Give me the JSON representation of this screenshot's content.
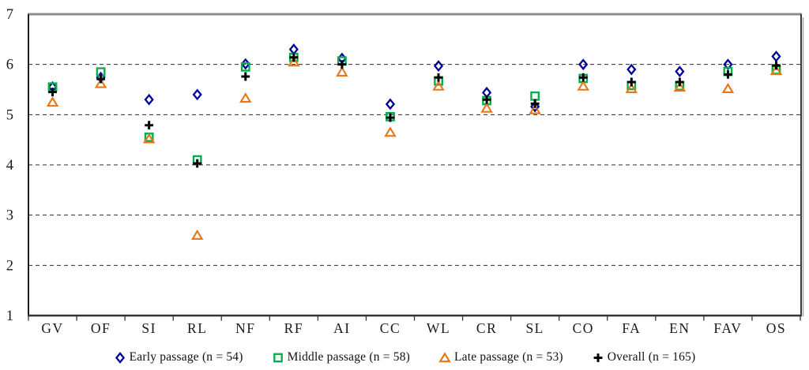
{
  "chart_data": {
    "type": "scatter",
    "title": "",
    "xlabel": "",
    "ylabel": "",
    "ylim": [
      1,
      7
    ],
    "yticks": [
      1,
      2,
      3,
      4,
      5,
      6,
      7
    ],
    "grid": "horizontal-dashed",
    "legend_position": "bottom",
    "categories": [
      "GV",
      "OF",
      "SI",
      "RL",
      "NF",
      "RF",
      "AI",
      "CC",
      "WL",
      "CR",
      "SL",
      "CO",
      "FA",
      "EN",
      "FAV",
      "OS"
    ],
    "series": [
      {
        "name": "Early passage (n = 54)",
        "marker": "diamond",
        "color": "#000099",
        "values": [
          5.55,
          5.74,
          5.3,
          5.4,
          6.01,
          6.3,
          6.12,
          5.21,
          5.97,
          5.44,
          5.16,
          6.0,
          5.9,
          5.86,
          6.0,
          6.16
        ]
      },
      {
        "name": "Middle passage (n = 58)",
        "marker": "square",
        "color": "#00B050",
        "values": [
          5.55,
          5.85,
          4.55,
          4.1,
          5.95,
          6.14,
          6.07,
          4.96,
          5.67,
          5.28,
          5.37,
          5.72,
          5.58,
          5.57,
          5.86,
          5.89
        ]
      },
      {
        "name": "Late passage (n = 53)",
        "marker": "triangle",
        "color": "#E97614",
        "values": [
          5.25,
          5.62,
          4.52,
          2.6,
          5.33,
          6.05,
          5.85,
          4.65,
          5.57,
          5.13,
          5.1,
          5.57,
          5.52,
          5.55,
          5.52,
          5.88
        ]
      },
      {
        "name": "Overall (n = 165)",
        "marker": "plus",
        "color": "#000000",
        "values": [
          5.45,
          5.71,
          4.79,
          4.03,
          5.76,
          6.14,
          6.0,
          4.94,
          5.74,
          5.3,
          5.22,
          5.74,
          5.65,
          5.65,
          5.8,
          5.98
        ]
      }
    ],
    "axis_colors": {
      "gridline": "#2b2b2b",
      "top_border": "#8c8c8c",
      "axis_line": "#1c1c1c",
      "right_shadow": "#a8a8a8",
      "tick_label": "#1a1a1a"
    }
  }
}
